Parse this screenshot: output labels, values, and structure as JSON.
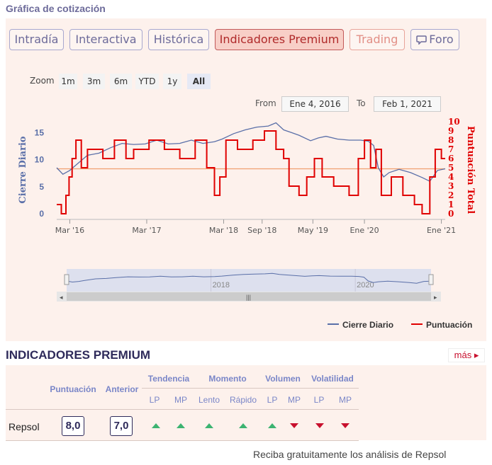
{
  "page": {
    "title": "Gráfica de cotización"
  },
  "tabs": [
    {
      "label": "Intradía",
      "state": "normal"
    },
    {
      "label": "Interactiva",
      "state": "normal"
    },
    {
      "label": "Histórica",
      "state": "normal"
    },
    {
      "label": "Indicadores Premium",
      "state": "active"
    },
    {
      "label": "Trading",
      "state": "trading"
    },
    {
      "label": "Foro",
      "state": "normal",
      "icon": "chat-bubble-icon"
    }
  ],
  "zoom": {
    "label": "Zoom",
    "buttons": [
      "1m",
      "3m",
      "6m",
      "YTD",
      "1y",
      "All"
    ],
    "selected": "All"
  },
  "range": {
    "from_label": "From",
    "from": "Ene 4, 2016",
    "to_label": "To",
    "to": "Feb 1, 2021"
  },
  "chart_data": {
    "type": "line",
    "x_ticks": [
      "Mar '16",
      "Mar '17",
      "Mar '18",
      "Sep '18",
      "May '19",
      "Ene '20",
      "Ene '21"
    ],
    "y_left": {
      "label": "Cierre Diario",
      "ticks": [
        "0",
        "5",
        "10",
        "15"
      ],
      "range": [
        0,
        17
      ]
    },
    "y_right": {
      "label": "Puntuación Total",
      "ticks": [
        "0",
        "1",
        "2",
        "3",
        "4",
        "5",
        "6",
        "7",
        "8",
        "9",
        "10"
      ],
      "range": [
        0,
        10
      ]
    },
    "reference_line": {
      "axis": "left",
      "value": 8.3,
      "color": "#f0a070"
    },
    "series": [
      {
        "name": "Cierre Diario",
        "axis": "left",
        "color": "#5a6fa8",
        "points": [
          [
            2016.0,
            8.5
          ],
          [
            2016.08,
            7.3
          ],
          [
            2016.17,
            8.0
          ],
          [
            2016.25,
            9.0
          ],
          [
            2016.4,
            10.8
          ],
          [
            2016.55,
            11.2
          ],
          [
            2016.7,
            12.2
          ],
          [
            2016.85,
            13.0
          ],
          [
            2017.0,
            12.8
          ],
          [
            2017.15,
            12.9
          ],
          [
            2017.3,
            13.6
          ],
          [
            2017.45,
            12.9
          ],
          [
            2017.6,
            13.0
          ],
          [
            2017.75,
            13.6
          ],
          [
            2017.9,
            13.0
          ],
          [
            2018.05,
            13.3
          ],
          [
            2018.15,
            13.8
          ],
          [
            2018.3,
            14.8
          ],
          [
            2018.45,
            15.5
          ],
          [
            2018.6,
            16.0
          ],
          [
            2018.75,
            16.2
          ],
          [
            2018.85,
            16.8
          ],
          [
            2018.95,
            15.5
          ],
          [
            2019.05,
            15.0
          ],
          [
            2019.15,
            14.5
          ],
          [
            2019.3,
            13.5
          ],
          [
            2019.4,
            14.0
          ],
          [
            2019.5,
            14.3
          ],
          [
            2019.65,
            13.8
          ],
          [
            2019.8,
            13.6
          ],
          [
            2019.95,
            13.6
          ],
          [
            2020.05,
            13.4
          ],
          [
            2020.12,
            12.6
          ],
          [
            2020.18,
            8.5
          ],
          [
            2020.25,
            6.8
          ],
          [
            2020.32,
            7.6
          ],
          [
            2020.45,
            8.2
          ],
          [
            2020.6,
            7.6
          ],
          [
            2020.75,
            6.7
          ],
          [
            2020.85,
            6.0
          ],
          [
            2020.95,
            8.0
          ],
          [
            2021.05,
            8.3
          ]
        ]
      },
      {
        "name": "Puntuación",
        "axis": "right",
        "color": "#e00000",
        "points": [
          [
            2016.0,
            1
          ],
          [
            2016.06,
            1
          ],
          [
            2016.06,
            0
          ],
          [
            2016.12,
            0
          ],
          [
            2016.12,
            2
          ],
          [
            2016.16,
            2
          ],
          [
            2016.16,
            4
          ],
          [
            2016.2,
            4
          ],
          [
            2016.2,
            6
          ],
          [
            2016.25,
            6
          ],
          [
            2016.25,
            8
          ],
          [
            2016.32,
            8
          ],
          [
            2016.32,
            5
          ],
          [
            2016.4,
            5
          ],
          [
            2016.4,
            7
          ],
          [
            2016.6,
            7
          ],
          [
            2016.6,
            6
          ],
          [
            2016.75,
            6
          ],
          [
            2016.75,
            8
          ],
          [
            2016.9,
            8
          ],
          [
            2016.9,
            6
          ],
          [
            2017.0,
            6
          ],
          [
            2017.0,
            7
          ],
          [
            2017.2,
            7
          ],
          [
            2017.2,
            8
          ],
          [
            2017.4,
            8
          ],
          [
            2017.4,
            7
          ],
          [
            2017.6,
            7
          ],
          [
            2017.6,
            6
          ],
          [
            2017.8,
            6
          ],
          [
            2017.8,
            8
          ],
          [
            2017.95,
            8
          ],
          [
            2017.95,
            5
          ],
          [
            2018.05,
            5
          ],
          [
            2018.05,
            2
          ],
          [
            2018.12,
            2
          ],
          [
            2018.12,
            4
          ],
          [
            2018.2,
            4
          ],
          [
            2018.2,
            8
          ],
          [
            2018.35,
            8
          ],
          [
            2018.35,
            7
          ],
          [
            2018.55,
            7
          ],
          [
            2018.55,
            8
          ],
          [
            2018.7,
            8
          ],
          [
            2018.7,
            9
          ],
          [
            2018.85,
            9
          ],
          [
            2018.85,
            7
          ],
          [
            2018.95,
            7
          ],
          [
            2018.95,
            6
          ],
          [
            2019.02,
            6
          ],
          [
            2019.02,
            3
          ],
          [
            2019.15,
            3
          ],
          [
            2019.15,
            2
          ],
          [
            2019.25,
            2
          ],
          [
            2019.25,
            4
          ],
          [
            2019.35,
            4
          ],
          [
            2019.35,
            6
          ],
          [
            2019.45,
            6
          ],
          [
            2019.45,
            4
          ],
          [
            2019.6,
            4
          ],
          [
            2019.6,
            3
          ],
          [
            2019.8,
            3
          ],
          [
            2019.8,
            2
          ],
          [
            2019.92,
            2
          ],
          [
            2019.92,
            6
          ],
          [
            2020.0,
            6
          ],
          [
            2020.0,
            8
          ],
          [
            2020.08,
            8
          ],
          [
            2020.08,
            5
          ],
          [
            2020.15,
            5
          ],
          [
            2020.15,
            7
          ],
          [
            2020.22,
            7
          ],
          [
            2020.22,
            2
          ],
          [
            2020.35,
            2
          ],
          [
            2020.35,
            4
          ],
          [
            2020.5,
            4
          ],
          [
            2020.5,
            2
          ],
          [
            2020.65,
            2
          ],
          [
            2020.65,
            1
          ],
          [
            2020.75,
            1
          ],
          [
            2020.75,
            0
          ],
          [
            2020.85,
            0
          ],
          [
            2020.85,
            4
          ],
          [
            2020.92,
            4
          ],
          [
            2020.92,
            7
          ],
          [
            2021.0,
            7
          ],
          [
            2021.0,
            6
          ],
          [
            2021.05,
            6
          ]
        ]
      }
    ],
    "navigator": {
      "ticks": [
        "2018",
        "2020"
      ]
    },
    "legend": [
      {
        "name": "Cierre Diario",
        "color": "#5a6fa8"
      },
      {
        "name": "Puntuación",
        "color": "#e00000"
      }
    ],
    "legend_position": "bottom-right"
  },
  "premium": {
    "title": "INDICADORES PREMIUM",
    "more_label": "más",
    "columns": {
      "puntuacion": "Puntuación",
      "anterior": "Anterior",
      "groups": [
        "Tendencia",
        "Momento",
        "Volumen",
        "Volatilidad"
      ],
      "sub": [
        "LP",
        "MP",
        "Lento",
        "Rápido",
        "LP",
        "MP",
        "LP",
        "MP"
      ]
    },
    "row": {
      "name": "Repsol",
      "puntuacion": "8,0",
      "anterior": "7,0",
      "signals": [
        "up",
        "up",
        "up",
        "up",
        "up",
        "down",
        "down",
        "down"
      ]
    }
  },
  "footer": {
    "text": "Reciba gratuitamente los análisis de Repsol"
  }
}
